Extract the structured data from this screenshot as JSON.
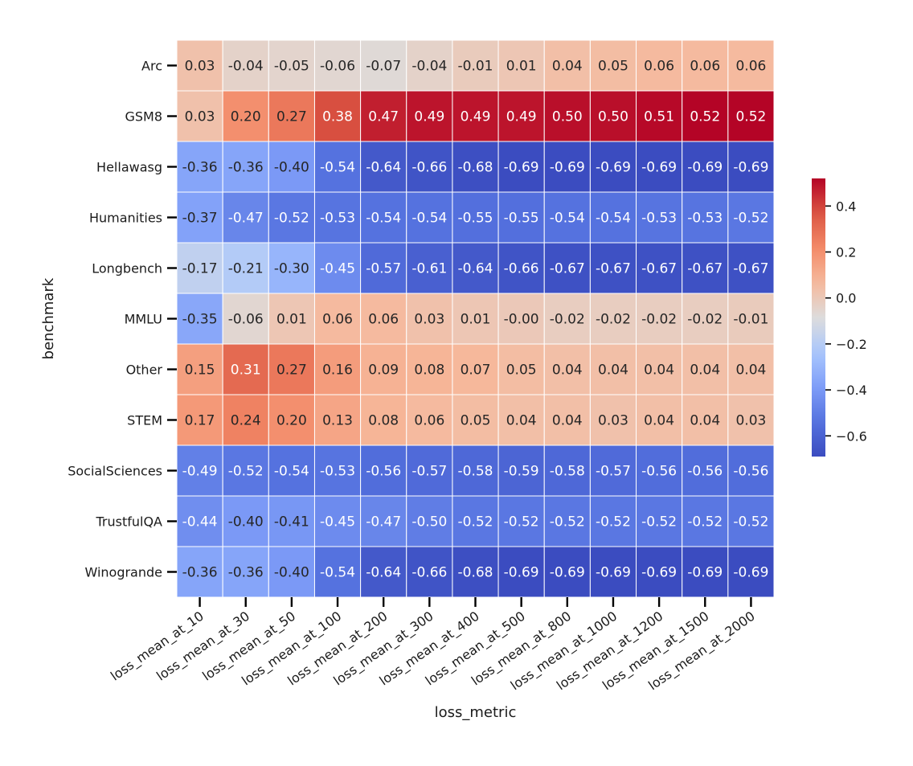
{
  "chart_data": {
    "type": "heatmap",
    "title": "",
    "xlabel": "loss_metric",
    "ylabel": "benchmark",
    "x": [
      "loss_mean_at_10",
      "loss_mean_at_30",
      "loss_mean_at_50",
      "loss_mean_at_100",
      "loss_mean_at_200",
      "loss_mean_at_300",
      "loss_mean_at_400",
      "loss_mean_at_500",
      "loss_mean_at_800",
      "loss_mean_at_1000",
      "loss_mean_at_1200",
      "loss_mean_at_1500",
      "loss_mean_at_2000"
    ],
    "y": [
      "Arc",
      "GSM8",
      "Hellawasg",
      "Humanities",
      "Longbench",
      "MMLU",
      "Other",
      "STEM",
      "SocialSciences",
      "TrustfulQA",
      "Winogrande"
    ],
    "values": [
      [
        0.03,
        -0.04,
        -0.05,
        -0.06,
        -0.07,
        -0.04,
        -0.01,
        0.01,
        0.04,
        0.05,
        0.06,
        0.06,
        0.06
      ],
      [
        0.03,
        0.2,
        0.27,
        0.38,
        0.47,
        0.49,
        0.49,
        0.49,
        0.5,
        0.5,
        0.51,
        0.52,
        0.52
      ],
      [
        -0.36,
        -0.36,
        -0.4,
        -0.54,
        -0.64,
        -0.66,
        -0.68,
        -0.69,
        -0.69,
        -0.69,
        -0.69,
        -0.69,
        -0.69
      ],
      [
        -0.37,
        -0.47,
        -0.52,
        -0.53,
        -0.54,
        -0.54,
        -0.55,
        -0.55,
        -0.54,
        -0.54,
        -0.53,
        -0.53,
        -0.52
      ],
      [
        -0.17,
        -0.21,
        -0.3,
        -0.45,
        -0.57,
        -0.61,
        -0.64,
        -0.66,
        -0.67,
        -0.67,
        -0.67,
        -0.67,
        -0.67
      ],
      [
        -0.35,
        -0.06,
        0.01,
        0.06,
        0.06,
        0.03,
        0.01,
        -0.0,
        -0.02,
        -0.02,
        -0.02,
        -0.02,
        -0.01
      ],
      [
        0.15,
        0.31,
        0.27,
        0.16,
        0.09,
        0.08,
        0.07,
        0.05,
        0.04,
        0.04,
        0.04,
        0.04,
        0.04
      ],
      [
        0.17,
        0.24,
        0.2,
        0.13,
        0.08,
        0.06,
        0.05,
        0.04,
        0.04,
        0.03,
        0.04,
        0.04,
        0.03
      ],
      [
        -0.49,
        -0.52,
        -0.54,
        -0.53,
        -0.56,
        -0.57,
        -0.58,
        -0.59,
        -0.58,
        -0.57,
        -0.56,
        -0.56,
        -0.56
      ],
      [
        -0.44,
        -0.4,
        -0.41,
        -0.45,
        -0.47,
        -0.5,
        -0.52,
        -0.52,
        -0.52,
        -0.52,
        -0.52,
        -0.52,
        -0.52
      ],
      [
        -0.36,
        -0.36,
        -0.4,
        -0.54,
        -0.64,
        -0.66,
        -0.68,
        -0.69,
        -0.69,
        -0.69,
        -0.69,
        -0.69,
        -0.69
      ]
    ],
    "labels": [
      [
        "0.03",
        "-0.04",
        "-0.05",
        "-0.06",
        "-0.07",
        "-0.04",
        "-0.01",
        "0.01",
        "0.04",
        "0.05",
        "0.06",
        "0.06",
        "0.06"
      ],
      [
        "0.03",
        "0.20",
        "0.27",
        "0.38",
        "0.47",
        "0.49",
        "0.49",
        "0.49",
        "0.50",
        "0.50",
        "0.51",
        "0.52",
        "0.52"
      ],
      [
        "-0.36",
        "-0.36",
        "-0.40",
        "-0.54",
        "-0.64",
        "-0.66",
        "-0.68",
        "-0.69",
        "-0.69",
        "-0.69",
        "-0.69",
        "-0.69",
        "-0.69"
      ],
      [
        "-0.37",
        "-0.47",
        "-0.52",
        "-0.53",
        "-0.54",
        "-0.54",
        "-0.55",
        "-0.55",
        "-0.54",
        "-0.54",
        "-0.53",
        "-0.53",
        "-0.52"
      ],
      [
        "-0.17",
        "-0.21",
        "-0.30",
        "-0.45",
        "-0.57",
        "-0.61",
        "-0.64",
        "-0.66",
        "-0.67",
        "-0.67",
        "-0.67",
        "-0.67",
        "-0.67"
      ],
      [
        "-0.35",
        "-0.06",
        "0.01",
        "0.06",
        "0.06",
        "0.03",
        "0.01",
        "-0.00",
        "-0.02",
        "-0.02",
        "-0.02",
        "-0.02",
        "-0.01"
      ],
      [
        "0.15",
        "0.31",
        "0.27",
        "0.16",
        "0.09",
        "0.08",
        "0.07",
        "0.05",
        "0.04",
        "0.04",
        "0.04",
        "0.04",
        "0.04"
      ],
      [
        "0.17",
        "0.24",
        "0.20",
        "0.13",
        "0.08",
        "0.06",
        "0.05",
        "0.04",
        "0.04",
        "0.03",
        "0.04",
        "0.04",
        "0.03"
      ],
      [
        "-0.49",
        "-0.52",
        "-0.54",
        "-0.53",
        "-0.56",
        "-0.57",
        "-0.58",
        "-0.59",
        "-0.58",
        "-0.57",
        "-0.56",
        "-0.56",
        "-0.56"
      ],
      [
        "-0.44",
        "-0.40",
        "-0.41",
        "-0.45",
        "-0.47",
        "-0.50",
        "-0.52",
        "-0.52",
        "-0.52",
        "-0.52",
        "-0.52",
        "-0.52",
        "-0.52"
      ],
      [
        "-0.36",
        "-0.36",
        "-0.40",
        "-0.54",
        "-0.64",
        "-0.66",
        "-0.68",
        "-0.69",
        "-0.69",
        "-0.69",
        "-0.69",
        "-0.69",
        "-0.69"
      ]
    ],
    "colormap": "coolwarm",
    "color_range": [
      -0.69,
      0.52
    ],
    "colorbar_ticks": [
      0.4,
      0.2,
      0.0,
      -0.2,
      -0.4,
      -0.6
    ],
    "colorbar_tick_labels": [
      "0.4",
      "0.2",
      "0.0",
      "−0.2",
      "−0.4",
      "−0.6"
    ],
    "legend": "right"
  }
}
